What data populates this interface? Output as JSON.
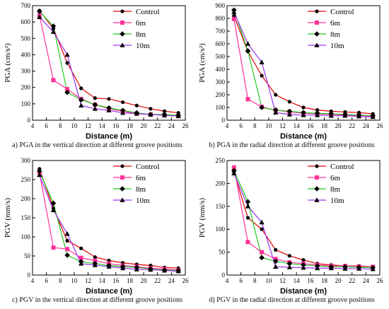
{
  "chart_data": [
    {
      "type": "line",
      "caption": "a) PGA in the vertical direction at different groove positions",
      "xlabel": "Distance (m)",
      "ylabel": "PGA (cm/s²)",
      "xlim": [
        4,
        26
      ],
      "ylim": [
        0,
        700
      ],
      "xticks": [
        "4",
        "6",
        "8",
        "10",
        "12",
        "14",
        "16",
        "18",
        "20",
        "22",
        "24",
        "26"
      ],
      "yticks": [
        "0",
        "100",
        "200",
        "300",
        "400",
        "500",
        "600",
        "700"
      ],
      "legend": "top-right",
      "x": [
        5,
        7,
        9,
        11,
        13,
        15,
        17,
        19,
        21,
        23,
        25
      ],
      "series": [
        {
          "name": "Control",
          "color": "#e00000",
          "marker": "circle",
          "values": [
            670,
            560,
            350,
            195,
            135,
            130,
            110,
            90,
            70,
            55,
            45
          ]
        },
        {
          "name": "6m",
          "color": "#ff3399",
          "marker": "square",
          "values": [
            640,
            245,
            190,
            130,
            95,
            70,
            55,
            40,
            35,
            30,
            25
          ]
        },
        {
          "name": "8m",
          "color": "#22cc22",
          "marker": "diamond",
          "values": [
            665,
            575,
            170,
            125,
            95,
            75,
            60,
            45,
            35,
            35,
            30
          ]
        },
        {
          "name": "10m",
          "color": "#9933ee",
          "marker": "triangle",
          "values": [
            630,
            540,
            400,
            90,
            70,
            60,
            45,
            40,
            35,
            30,
            25
          ]
        }
      ]
    },
    {
      "type": "line",
      "caption": "b) PGA in the radial direction at different groove positions",
      "xlabel": "Distance (m)",
      "ylabel": "PGA (cm/s²)",
      "xlim": [
        4,
        26
      ],
      "ylim": [
        0,
        900
      ],
      "xticks": [
        "4",
        "6",
        "8",
        "10",
        "12",
        "14",
        "16",
        "18",
        "20",
        "22",
        "24",
        "26"
      ],
      "yticks": [
        "0",
        "100",
        "200",
        "300",
        "400",
        "500",
        "600",
        "700",
        "800",
        "900"
      ],
      "legend": "top-right",
      "x": [
        5,
        7,
        9,
        11,
        13,
        15,
        17,
        19,
        21,
        23,
        25
      ],
      "series": [
        {
          "name": "Control",
          "color": "#e00000",
          "marker": "circle",
          "values": [
            820,
            540,
            350,
            200,
            145,
            100,
            80,
            70,
            65,
            60,
            50
          ]
        },
        {
          "name": "6m",
          "color": "#ff3399",
          "marker": "square",
          "values": [
            795,
            165,
            105,
            80,
            65,
            55,
            50,
            45,
            40,
            35,
            30
          ]
        },
        {
          "name": "8m",
          "color": "#22cc22",
          "marker": "diamond",
          "values": [
            865,
            545,
            100,
            80,
            70,
            60,
            55,
            50,
            45,
            40,
            35
          ]
        },
        {
          "name": "10m",
          "color": "#9933ee",
          "marker": "triangle",
          "values": [
            850,
            600,
            455,
            60,
            45,
            40,
            40,
            35,
            35,
            30,
            25
          ]
        }
      ]
    },
    {
      "type": "line",
      "caption": "c) PGV in the vertical direction at different groove positions",
      "xlabel": "Distance (m)",
      "ylabel": "PGV (mm/s)",
      "xlim": [
        4,
        26
      ],
      "ylim": [
        0,
        300
      ],
      "xticks": [
        "4",
        "6",
        "8",
        "10",
        "12",
        "14",
        "16",
        "18",
        "20",
        "22",
        "24",
        "26"
      ],
      "yticks": [
        "0",
        "50",
        "100",
        "150",
        "200",
        "250",
        "300"
      ],
      "legend": "top-right",
      "x": [
        5,
        7,
        9,
        11,
        13,
        15,
        17,
        19,
        21,
        23,
        25
      ],
      "series": [
        {
          "name": "Control",
          "color": "#e00000",
          "marker": "circle",
          "values": [
            278,
            175,
            90,
            70,
            47,
            38,
            32,
            28,
            25,
            20,
            18
          ]
        },
        {
          "name": "6m",
          "color": "#ff3399",
          "marker": "square",
          "values": [
            268,
            72,
            68,
            45,
            38,
            30,
            25,
            22,
            18,
            16,
            13
          ]
        },
        {
          "name": "8m",
          "color": "#22cc22",
          "marker": "diamond",
          "values": [
            272,
            188,
            52,
            35,
            30,
            25,
            22,
            20,
            16,
            13,
            12
          ]
        },
        {
          "name": "10m",
          "color": "#9933ee",
          "marker": "triangle",
          "values": [
            262,
            170,
            108,
            30,
            26,
            22,
            18,
            15,
            14,
            12,
            10
          ]
        }
      ]
    },
    {
      "type": "line",
      "caption": "d) PGV in the radial direction at different groove positions",
      "xlabel": "Distance (m)",
      "ylabel": "PGV (mm/s)",
      "xlim": [
        4,
        26
      ],
      "ylim": [
        0,
        250
      ],
      "xticks": [
        "4",
        "6",
        "8",
        "10",
        "12",
        "14",
        "16",
        "18",
        "20",
        "22",
        "24",
        "26"
      ],
      "yticks": [
        "0",
        "50",
        "100",
        "150",
        "200",
        "250"
      ],
      "legend": "top-right",
      "x": [
        5,
        7,
        9,
        11,
        13,
        15,
        17,
        19,
        21,
        23,
        25
      ],
      "series": [
        {
          "name": "Control",
          "color": "#e00000",
          "marker": "circle",
          "values": [
            225,
            125,
            100,
            55,
            42,
            33,
            25,
            22,
            20,
            20,
            18
          ]
        },
        {
          "name": "6m",
          "color": "#ff3399",
          "marker": "square",
          "values": [
            235,
            72,
            50,
            35,
            28,
            25,
            22,
            20,
            20,
            19,
            18
          ]
        },
        {
          "name": "8m",
          "color": "#22cc22",
          "marker": "diamond",
          "values": [
            228,
            160,
            38,
            30,
            25,
            22,
            20,
            18,
            18,
            17,
            16
          ]
        },
        {
          "name": "10m",
          "color": "#9933ee",
          "marker": "triangle",
          "values": [
            222,
            150,
            115,
            18,
            17,
            16,
            15,
            15,
            14,
            14,
            13
          ]
        }
      ]
    }
  ]
}
